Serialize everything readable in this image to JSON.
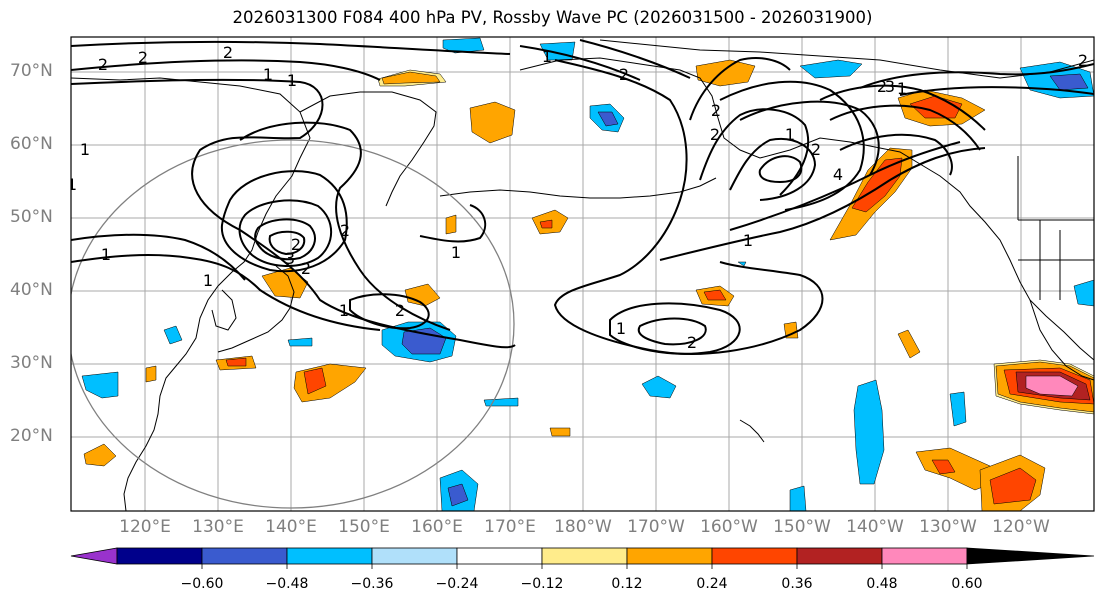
{
  "title": "2026031300 F084 400 hPa PV, Rossby Wave PC (2026031500 - 2026031900)",
  "lat_labels": [
    "70°N",
    "60°N",
    "50°N",
    "40°N",
    "30°N",
    "20°N"
  ],
  "lon_labels": [
    "120°E",
    "130°E",
    "140°E",
    "150°E",
    "160°E",
    "170°E",
    "180°W",
    "170°W",
    "160°W",
    "150°W",
    "140°W",
    "130°W",
    "120°W"
  ],
  "colorbar": {
    "ticks": [
      "−0.60",
      "−0.48",
      "−0.36",
      "−0.24",
      "−0.12",
      "0.12",
      "0.24",
      "0.36",
      "0.48",
      "0.60"
    ],
    "colors": [
      "#9932CC",
      "#00008B",
      "#3A5BCF",
      "#00BFFF",
      "#B0E0FA",
      "#FFFFFF",
      "#FFEC8B",
      "#FFA500",
      "#FF4500",
      "#B22222",
      "#FF88BB"
    ]
  },
  "contour_labels": [
    "2",
    "2",
    "1",
    "1",
    "2",
    "1",
    "2",
    "1",
    "1",
    "2",
    "2",
    "3",
    "1",
    "1",
    "2",
    "2",
    "1",
    "2",
    "1",
    "1",
    "2",
    "2",
    "1",
    "2",
    "3",
    "4",
    "2",
    "1",
    "1",
    "2"
  ]
}
